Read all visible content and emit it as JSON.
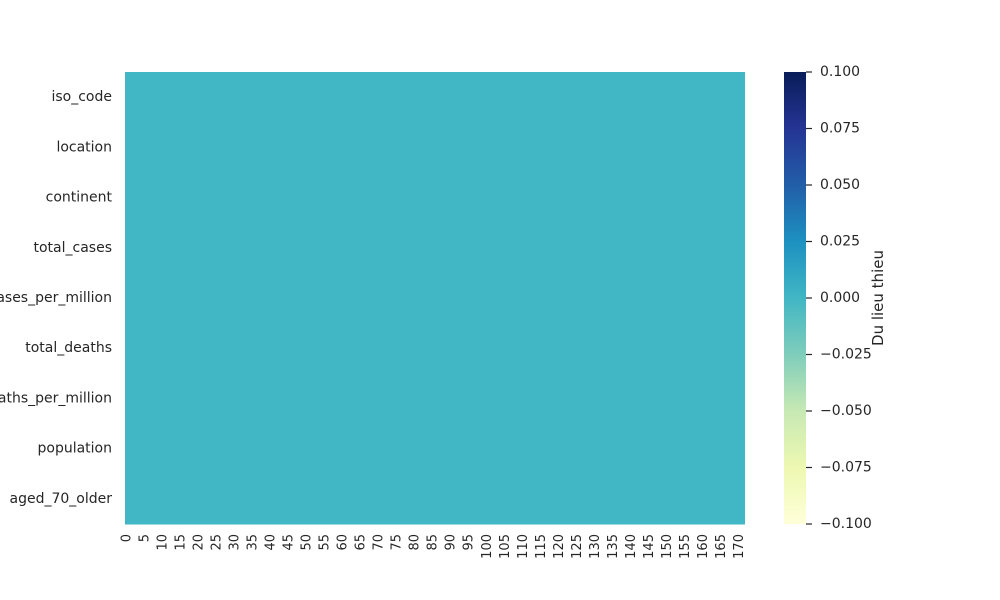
{
  "chart_data": {
    "type": "heatmap",
    "title": "",
    "xlabel": "",
    "ylabel": "",
    "rows": [
      "iso_code",
      "location",
      "continent",
      "total_cases",
      "total_cases_per_million",
      "total_deaths",
      "total_deaths_per_million",
      "population",
      "aged_70_older"
    ],
    "x_tick_labels": [
      "0",
      "5",
      "10",
      "15",
      "20",
      "25",
      "30",
      "35",
      "40",
      "45",
      "50",
      "55",
      "60",
      "65",
      "70",
      "75",
      "80",
      "85",
      "90",
      "95",
      "100",
      "105",
      "110",
      "115",
      "120",
      "125",
      "130",
      "135",
      "140",
      "145",
      "150",
      "155",
      "160",
      "165",
      "170"
    ],
    "n_columns": 172,
    "cell_value": 0,
    "cell_color": "#41b6c4",
    "colorbar": {
      "label": "Du lieu thieu",
      "range": [
        -0.1,
        0.1
      ],
      "ticks": [
        "0.100",
        "0.075",
        "0.050",
        "0.025",
        "0.000",
        "−0.025",
        "−0.050",
        "−0.075",
        "−0.100"
      ],
      "colormap": "YlGnBu",
      "colors_low_to_high": [
        "#ffffd9",
        "#edf8b1",
        "#c7e9b4",
        "#7fcdbb",
        "#41b6c4",
        "#1d91c0",
        "#225ea8",
        "#253494",
        "#081d58"
      ]
    }
  }
}
